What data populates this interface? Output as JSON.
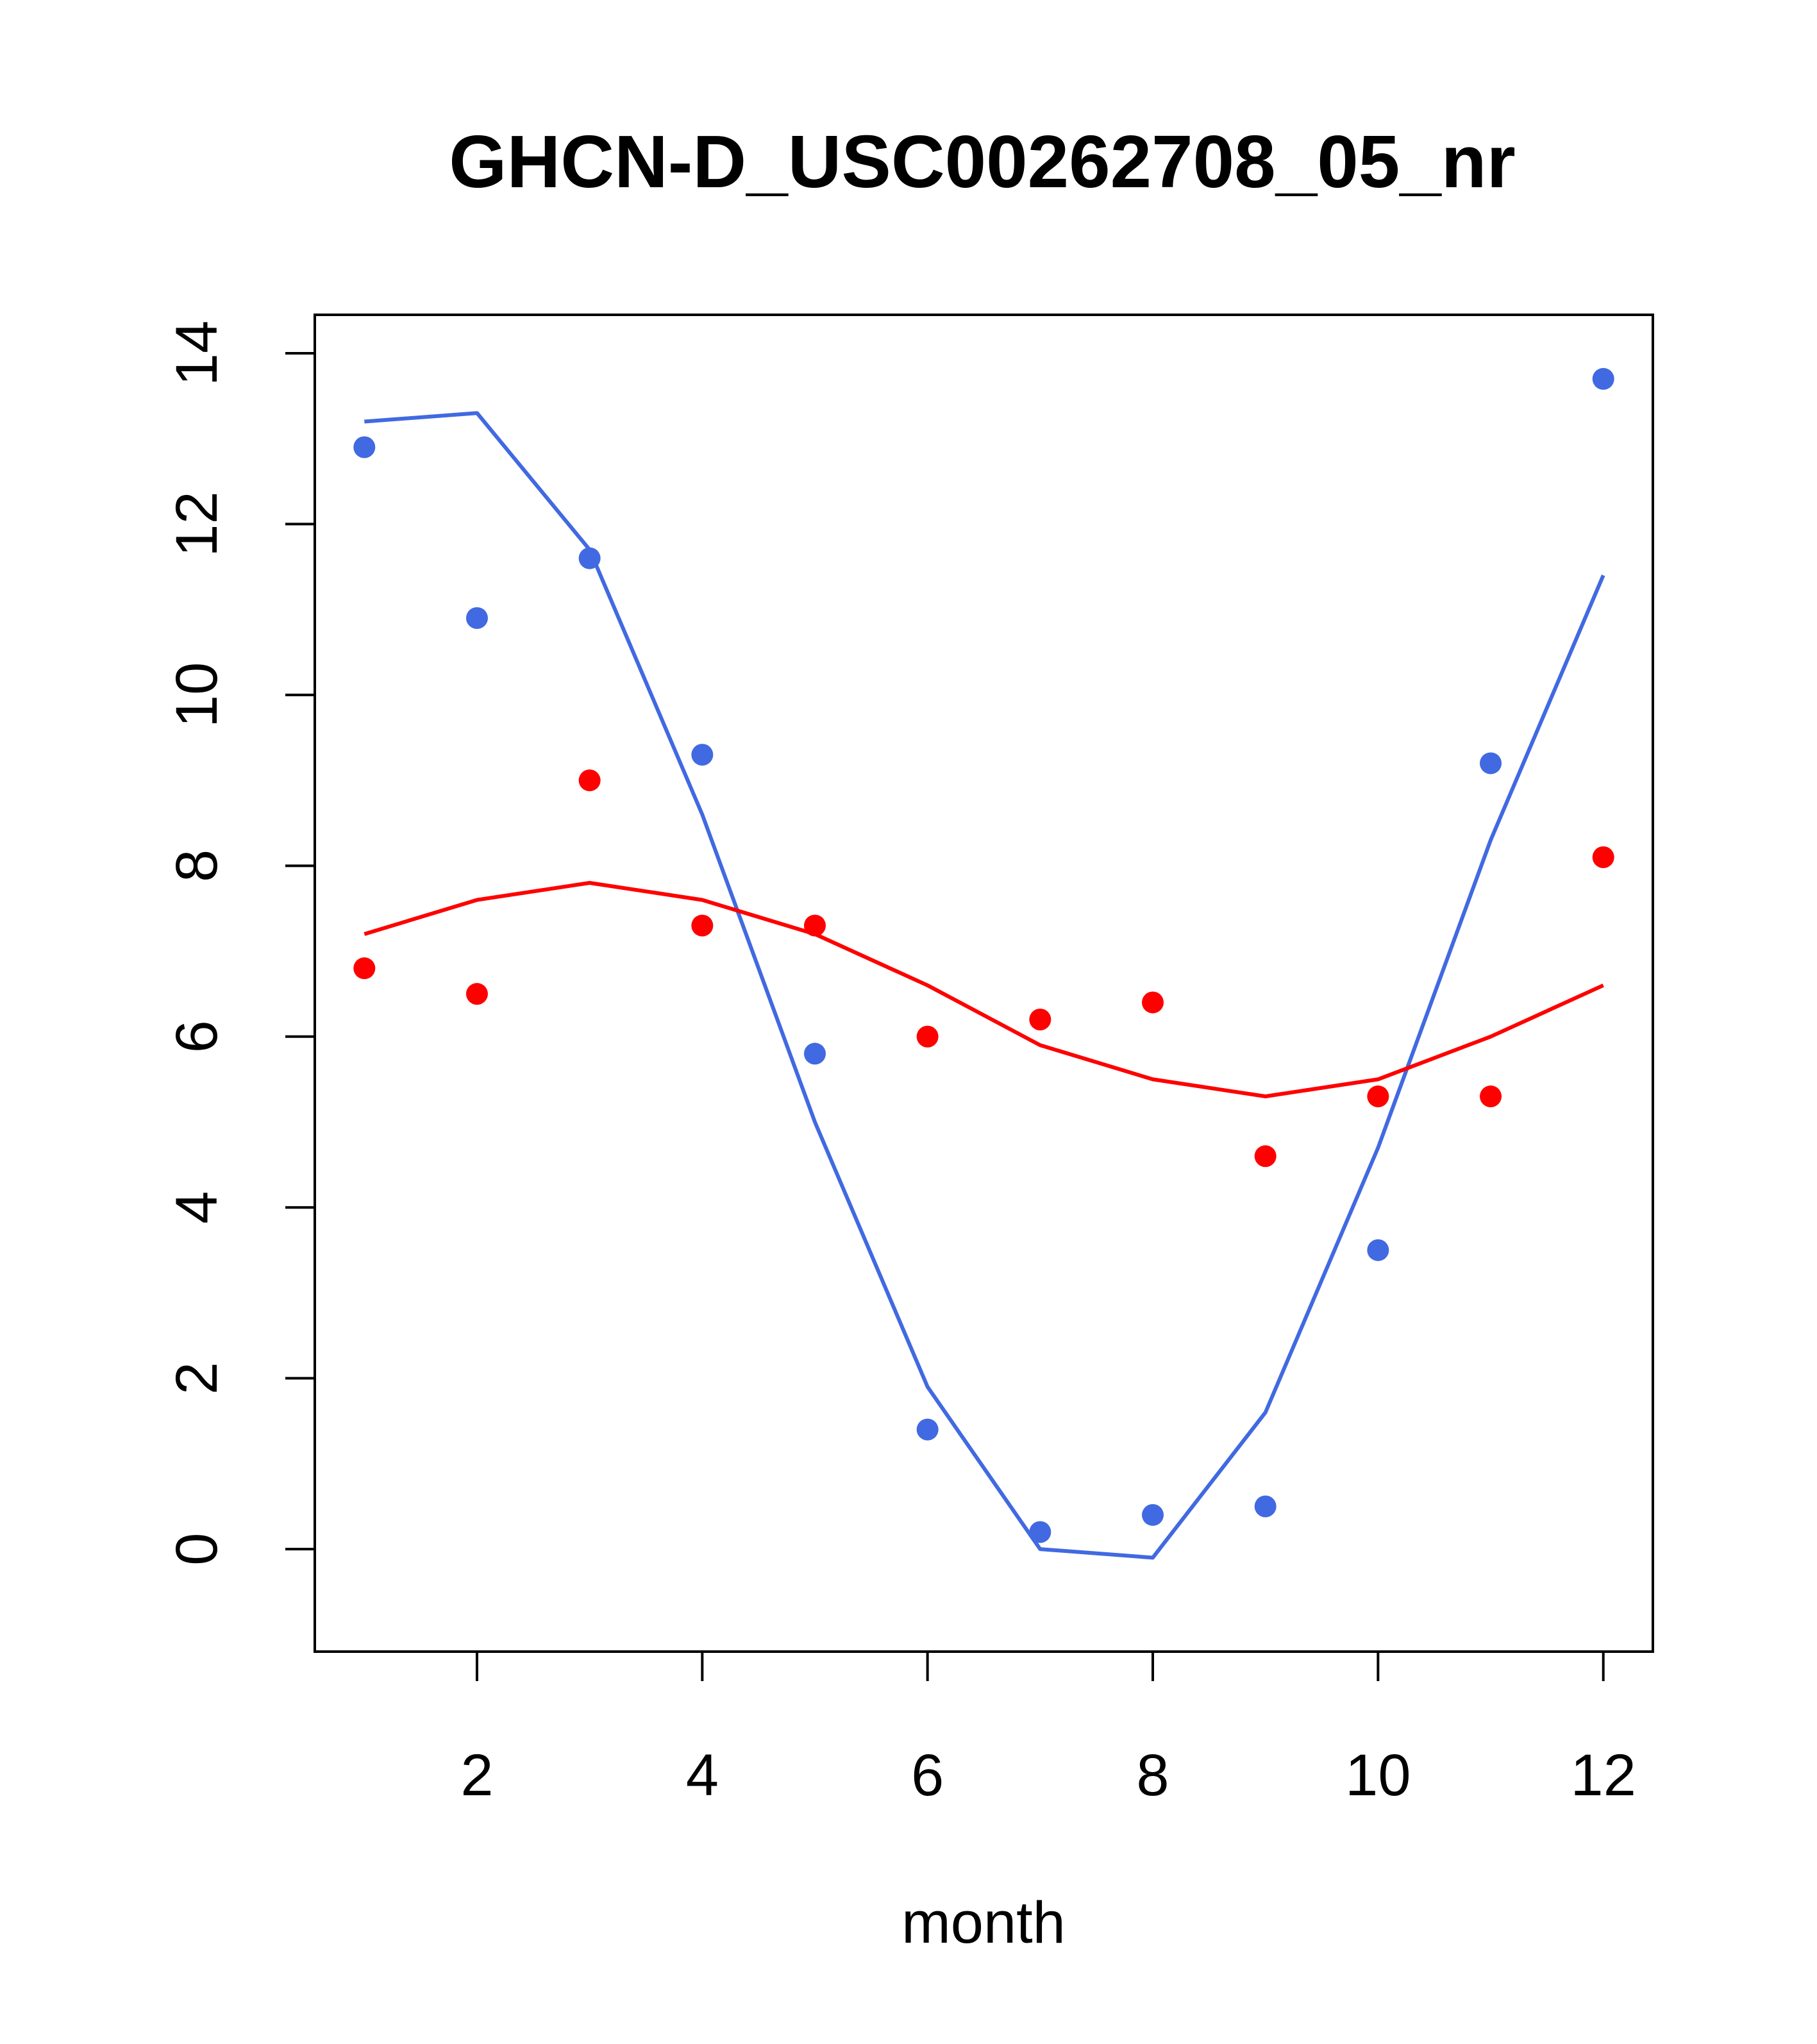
{
  "chart_data": {
    "type": "scatter",
    "title": "GHCN-D_USC00262708_05_nr",
    "xlabel": "month",
    "ylabel": "",
    "xlim": [
      0.56,
      12.44
    ],
    "ylim": [
      -1.2,
      14.45
    ],
    "x_ticks": [
      2,
      4,
      6,
      8,
      10,
      12
    ],
    "y_ticks": [
      0,
      2,
      4,
      6,
      8,
      10,
      12,
      14
    ],
    "grid": false,
    "series": [
      {
        "color": "#4169E1",
        "points": {
          "x": [
            1,
            2,
            3,
            4,
            5,
            6,
            7,
            8,
            9,
            10,
            11,
            12
          ],
          "y": [
            12.9,
            10.9,
            11.6,
            9.3,
            5.8,
            1.4,
            0.2,
            0.4,
            0.5,
            3.5,
            9.2,
            13.7
          ]
        },
        "fit_line": {
          "x": [
            1,
            2,
            3,
            4,
            5,
            6,
            7,
            8,
            9,
            10,
            11,
            12
          ],
          "y": [
            13.2,
            13.3,
            11.7,
            8.6,
            5.0,
            1.9,
            0.0,
            -0.1,
            1.6,
            4.7,
            8.3,
            11.4
          ]
        }
      },
      {
        "color": "#FF0000",
        "points": {
          "x": [
            1,
            2,
            3,
            4,
            5,
            6,
            7,
            8,
            9,
            10,
            11,
            12
          ],
          "y": [
            6.8,
            6.5,
            9.0,
            7.3,
            7.3,
            6.0,
            6.2,
            6.4,
            4.6,
            5.3,
            5.3,
            8.1
          ]
        },
        "fit_line": {
          "x": [
            1,
            2,
            3,
            4,
            5,
            6,
            7,
            8,
            9,
            10,
            11,
            12
          ],
          "y": [
            7.2,
            7.6,
            7.8,
            7.6,
            7.2,
            6.6,
            5.9,
            5.5,
            5.3,
            5.5,
            6.0,
            6.6
          ]
        }
      }
    ]
  }
}
